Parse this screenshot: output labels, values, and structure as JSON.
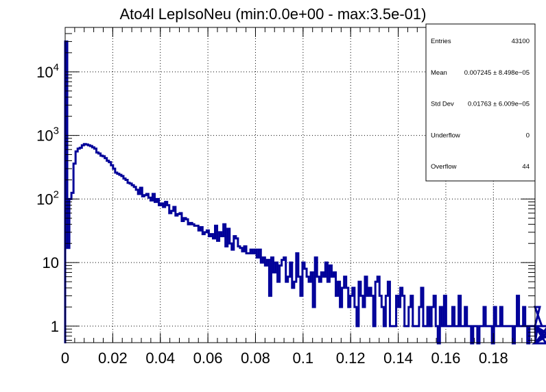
{
  "chart_data": {
    "type": "histogram",
    "title": "Ato4l LepIsoNeu (min:0.0e+00 - max:3.5e-01)",
    "xlabel": "",
    "ylabel": "",
    "xlim": [
      0,
      0.1975
    ],
    "ylim": [
      0.55,
      50000
    ],
    "y_scale": "log",
    "grid": true,
    "line_color": "#000099",
    "x_ticks": [
      {
        "v": 0,
        "label": "0"
      },
      {
        "v": 0.02,
        "label": "0.02"
      },
      {
        "v": 0.04,
        "label": "0.04"
      },
      {
        "v": 0.06,
        "label": "0.06"
      },
      {
        "v": 0.08,
        "label": "0.08"
      },
      {
        "v": 0.1,
        "label": "0.1"
      },
      {
        "v": 0.12,
        "label": "0.12"
      },
      {
        "v": 0.14,
        "label": "0.14"
      },
      {
        "v": 0.16,
        "label": "0.16"
      },
      {
        "v": 0.18,
        "label": "0.18"
      }
    ],
    "y_ticks": [
      {
        "v": 1,
        "base": "1",
        "exp": ""
      },
      {
        "v": 10,
        "base": "10",
        "exp": ""
      },
      {
        "v": 100,
        "base": "10",
        "exp": "2"
      },
      {
        "v": 1000,
        "base": "10",
        "exp": "3"
      },
      {
        "v": 10000,
        "base": "10",
        "exp": "4"
      }
    ],
    "bin_width": 0.000875,
    "bins_start": 0,
    "values": [
      30000,
      17,
      100,
      125,
      360,
      560,
      620,
      640,
      700,
      730,
      720,
      700,
      680,
      650,
      620,
      540,
      520,
      480,
      470,
      440,
      400,
      380,
      340,
      300,
      260,
      250,
      240,
      230,
      210,
      200,
      180,
      175,
      165,
      155,
      140,
      120,
      150,
      110,
      115,
      120,
      105,
      95,
      120,
      90,
      100,
      80,
      85,
      75,
      90,
      80,
      60,
      65,
      75,
      55,
      58,
      60,
      45,
      50,
      48,
      40,
      42,
      40,
      38,
      38,
      32,
      36,
      28,
      30,
      32,
      26,
      28,
      24,
      38,
      22,
      30,
      26,
      40,
      18,
      34,
      20,
      16,
      26,
      24,
      18,
      17,
      15,
      18,
      14,
      14,
      16,
      14,
      16,
      12,
      16,
      10,
      12,
      9,
      11,
      3,
      12,
      7,
      10,
      5,
      9,
      11,
      12,
      5,
      6,
      10,
      4,
      5,
      14,
      6,
      3,
      10,
      8,
      6,
      5,
      7,
      2,
      12,
      6,
      5,
      7,
      6,
      10,
      5,
      9,
      6,
      7,
      3,
      5,
      2,
      4,
      6,
      4,
      2,
      3,
      4,
      2,
      1,
      5,
      3,
      2,
      6,
      3,
      4,
      3,
      1,
      5,
      6,
      3,
      2,
      1,
      3,
      5,
      1,
      1,
      1,
      3,
      2,
      4,
      3,
      1,
      1,
      2,
      3,
      1,
      1,
      1,
      2,
      4,
      1,
      1,
      2,
      1,
      2,
      3,
      1,
      0,
      2,
      1,
      3,
      1,
      1,
      1,
      2,
      1,
      1,
      3,
      1,
      1,
      2,
      1,
      1,
      0,
      1,
      1,
      0,
      1,
      1,
      2,
      1,
      1,
      1,
      0,
      2,
      1,
      1,
      2,
      1,
      1,
      1,
      1,
      1,
      0,
      1,
      3,
      1,
      1,
      2,
      1,
      0,
      1,
      1,
      1,
      0,
      1,
      2,
      1,
      1,
      0,
      1,
      1,
      0,
      1,
      1,
      1,
      0,
      1,
      0
    ]
  },
  "stats": [
    {
      "label": "Entries",
      "value": "43100"
    },
    {
      "label": "Mean",
      "value": "0.007245 ± 8.498e−05"
    },
    {
      "label": "Std Dev",
      "value": "0.01763 ± 6.009e−05"
    },
    {
      "label": "Underflow",
      "value": "0"
    },
    {
      "label": "Overflow",
      "value": "44"
    }
  ]
}
